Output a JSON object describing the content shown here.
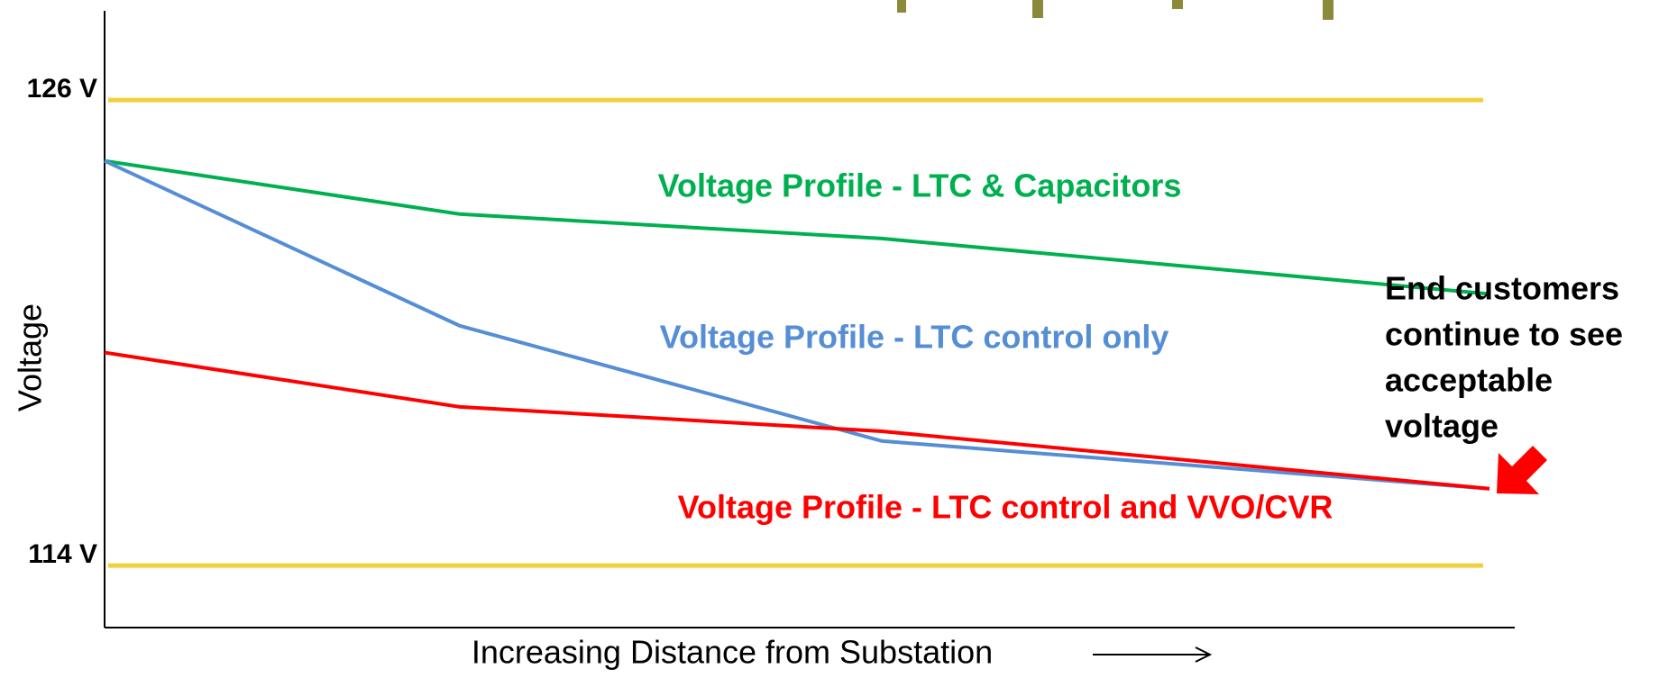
{
  "chart_data": {
    "type": "line",
    "ylabel": "Voltage",
    "xlabel": "Increasing Distance from Substation",
    "categories": [
      null,
      null,
      null,
      null
    ],
    "series": [
      {
        "name": "Voltage Profile - LTC & Capacitors",
        "color": "#00b050",
        "values": [
          124.43,
          123.06,
          122.43,
          121.0
        ]
      },
      {
        "name": "Voltage Profile - LTC control only",
        "color": "#558ed5",
        "values": [
          124.43,
          120.18,
          117.21,
          115.98
        ]
      },
      {
        "name": "Voltage Profile - LTC control and VVO/CVR",
        "color": "#ff0000",
        "values": [
          119.49,
          118.09,
          117.46,
          115.98
        ]
      }
    ],
    "ylim": [
      112.4,
      128.3
    ],
    "yticks": [
      {
        "value": 114,
        "label": "114 V"
      },
      {
        "value": 126,
        "label": "126 V"
      }
    ],
    "grid": true,
    "grid_color": "#f0d040",
    "annotation": [
      "End customers",
      "continue to see",
      "acceptable",
      "voltage"
    ]
  }
}
